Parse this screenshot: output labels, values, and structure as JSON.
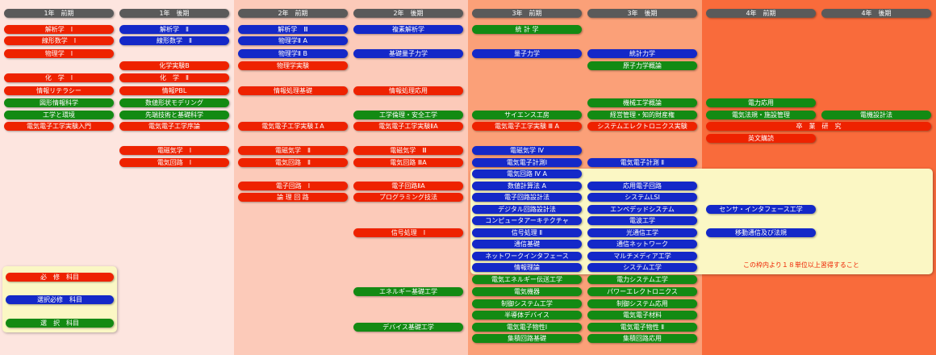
{
  "headers": [
    "1年　前期",
    "1年　後期",
    "2年　前期",
    "2年　後期",
    "3年　前期",
    "3年　後期",
    "4年　前期",
    "4年　後期"
  ],
  "courses": {
    "y1_first": [
      {
        "name": "解析学　Ⅰ",
        "type": "required"
      },
      {
        "name": "線形数学　Ⅰ",
        "type": "required"
      },
      {
        "name": "物理学　Ⅰ",
        "type": "required"
      },
      {
        "name": "化　学　Ⅰ",
        "type": "required"
      },
      {
        "name": "情報リテラシー",
        "type": "required"
      },
      {
        "name": "図形情報科学",
        "type": "elective"
      },
      {
        "name": "工学と環境",
        "type": "elective"
      },
      {
        "name": "電気電子工学実験入門",
        "type": "required"
      }
    ],
    "y1_second": [
      {
        "name": "解析学　Ⅱ",
        "type": "selective_required"
      },
      {
        "name": "線形数学　Ⅱ",
        "type": "selective_required"
      },
      {
        "name": "化学実験B",
        "type": "required"
      },
      {
        "name": "化　学　Ⅱ",
        "type": "required"
      },
      {
        "name": "情報PBL",
        "type": "required"
      },
      {
        "name": "数値形状モデリング",
        "type": "elective"
      },
      {
        "name": "先端技術と基礎科学",
        "type": "elective"
      },
      {
        "name": "電気電子工学序論",
        "type": "required"
      },
      {
        "name": "電磁気学　Ⅰ",
        "type": "required"
      },
      {
        "name": "電気回路　Ⅰ",
        "type": "required"
      }
    ],
    "y2_first": [
      {
        "name": "解析学　Ⅲ",
        "type": "selective_required"
      },
      {
        "name": "物理学Ⅱ A",
        "type": "selective_required"
      },
      {
        "name": "物理学Ⅱ B",
        "type": "selective_required"
      },
      {
        "name": "物理学実験",
        "type": "required"
      },
      {
        "name": "情報処理基礎",
        "type": "required"
      },
      {
        "name": "電気電子工学実験ＩA",
        "type": "required"
      },
      {
        "name": "電磁気学　Ⅱ",
        "type": "required"
      },
      {
        "name": "電気回路　Ⅱ",
        "type": "required"
      },
      {
        "name": "電子回路　Ⅰ",
        "type": "required"
      },
      {
        "name": "論 理 回 路",
        "type": "required"
      }
    ],
    "y2_second": [
      {
        "name": "複素解析学",
        "type": "selective_required"
      },
      {
        "name": "基礎量子力学",
        "type": "selective_required"
      },
      {
        "name": "情報処理応用",
        "type": "required"
      },
      {
        "name": "工学倫理・安全工学",
        "type": "elective"
      },
      {
        "name": "電気電子工学実験ⅡA",
        "type": "required"
      },
      {
        "name": "電磁気学　Ⅲ",
        "type": "required"
      },
      {
        "name": "電気回路 ⅢA",
        "type": "required"
      },
      {
        "name": "電子回路ⅡA",
        "type": "required"
      },
      {
        "name": "プログラミング技法",
        "type": "required"
      },
      {
        "name": "信号処理　Ⅰ",
        "type": "required"
      },
      {
        "name": "エネルギー基礎工学",
        "type": "elective"
      },
      {
        "name": "デバイス基礎工学",
        "type": "elective"
      }
    ],
    "y3_first": [
      {
        "name": "統 計 学",
        "type": "elective"
      },
      {
        "name": "量子力学",
        "type": "selective_required"
      },
      {
        "name": "サイエンス工房",
        "type": "elective"
      },
      {
        "name": "電気電子工学実験 Ⅲ A",
        "type": "required"
      },
      {
        "name": "電磁気学 Ⅳ",
        "type": "selective_required"
      },
      {
        "name": "電気電子計測Ⅰ",
        "type": "selective_required"
      },
      {
        "name": "電気回路 Ⅳ A",
        "type": "selective_required"
      },
      {
        "name": "数値計算法 A",
        "type": "selective_required"
      },
      {
        "name": "電子回路設計法",
        "type": "selective_required"
      },
      {
        "name": "デジタル回路設計法",
        "type": "selective_required"
      },
      {
        "name": "コンピュータアーキテクチャ",
        "type": "selective_required"
      },
      {
        "name": "信号処理 Ⅱ",
        "type": "selective_required"
      },
      {
        "name": "通信基礎",
        "type": "selective_required"
      },
      {
        "name": "ネットワークインタフェース",
        "type": "selective_required"
      },
      {
        "name": "情報理論",
        "type": "selective_required"
      },
      {
        "name": "電気エネルギー伝送工学",
        "type": "elective"
      },
      {
        "name": "電気機器",
        "type": "elective"
      },
      {
        "name": "制御システム工学",
        "type": "elective"
      },
      {
        "name": "半導体デバイス",
        "type": "elective"
      },
      {
        "name": "電気電子物性Ⅰ",
        "type": "elective"
      },
      {
        "name": "集積回路基礎",
        "type": "elective"
      }
    ],
    "y3_second": [
      {
        "name": "統計力学",
        "type": "selective_required"
      },
      {
        "name": "原子力学概論",
        "type": "elective"
      },
      {
        "name": "機械工学概論",
        "type": "elective"
      },
      {
        "name": "経営管理・知的財産権",
        "type": "elective"
      },
      {
        "name": "システムエレクトロニクス実験",
        "type": "required"
      },
      {
        "name": "電気電子計測 Ⅱ",
        "type": "selective_required"
      },
      {
        "name": "応用電子回路",
        "type": "selective_required"
      },
      {
        "name": "システムLSI",
        "type": "selective_required"
      },
      {
        "name": "エンベデッドシステム",
        "type": "selective_required"
      },
      {
        "name": "電波工学",
        "type": "selective_required"
      },
      {
        "name": "光通信工学",
        "type": "selective_required"
      },
      {
        "name": "通信ネットワーク",
        "type": "selective_required"
      },
      {
        "name": "マルチメディア工学",
        "type": "selective_required"
      },
      {
        "name": "システム工学",
        "type": "selective_required"
      },
      {
        "name": "電力システム工学",
        "type": "elective"
      },
      {
        "name": "パワーエレクトロニクス",
        "type": "elective"
      },
      {
        "name": "制御システム応用",
        "type": "elective"
      },
      {
        "name": "電気電子材料",
        "type": "elective"
      },
      {
        "name": "電気電子物性 Ⅱ",
        "type": "elective"
      },
      {
        "name": "集積回路応用",
        "type": "elective"
      }
    ],
    "y4_first": [
      {
        "name": "電力応用",
        "type": "elective"
      },
      {
        "name": "電気法規・施設管理",
        "type": "elective"
      },
      {
        "name": "英文購読",
        "type": "required"
      },
      {
        "name": "センサ・インタフェース工学",
        "type": "selective_required"
      },
      {
        "name": "移動通信及び法規",
        "type": "selective_required"
      }
    ],
    "y4_second": [
      {
        "name": "電機設計法",
        "type": "elective"
      }
    ],
    "thesis": {
      "name": "卒　業　研　究",
      "type": "required"
    }
  },
  "elective_box_note": "この枠内より１８単位以上習得すること",
  "legend": {
    "required": "必　修　科目",
    "selective_required": "選択必修　科目",
    "elective": "選　択　科目"
  },
  "colors": {
    "required": "#ee2200",
    "selective_required": "#1428c8",
    "elective": "#138a13",
    "header": "#5a5a5a",
    "band1": "#fde5df",
    "band2": "#fccab9",
    "band3": "#fba078",
    "band4": "#f96b3b",
    "elective_box": "#fbf7c4"
  }
}
